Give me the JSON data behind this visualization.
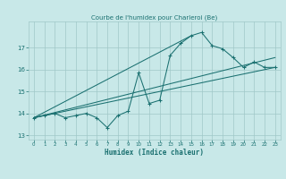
{
  "title": "Courbe de l'humidex pour Charleroi (Be)",
  "xlabel": "Humidex (Indice chaleur)",
  "bg_color": "#c8e8e8",
  "grid_color": "#a0c8c8",
  "line_color": "#1a7070",
  "xlim": [
    -0.5,
    23.5
  ],
  "ylim": [
    12.8,
    18.2
  ],
  "xticks": [
    0,
    1,
    2,
    3,
    4,
    5,
    6,
    7,
    8,
    9,
    10,
    11,
    12,
    13,
    14,
    15,
    16,
    17,
    18,
    19,
    20,
    21,
    22,
    23
  ],
  "yticks": [
    13,
    14,
    15,
    16,
    17
  ],
  "main_x": [
    0,
    1,
    2,
    3,
    4,
    5,
    6,
    7,
    8,
    9,
    10,
    11,
    12,
    13,
    14,
    15,
    16,
    17,
    18,
    19,
    20,
    21,
    22,
    23
  ],
  "main_y": [
    13.8,
    13.9,
    14.0,
    13.8,
    13.9,
    14.0,
    13.8,
    13.35,
    13.9,
    14.1,
    15.85,
    14.45,
    14.6,
    16.65,
    17.2,
    17.55,
    17.7,
    17.1,
    16.95,
    16.55,
    16.1,
    16.35,
    16.1,
    16.1
  ],
  "line1_x": [
    0,
    23
  ],
  "line1_y": [
    13.8,
    16.1
  ],
  "line2_x": [
    0,
    15
  ],
  "line2_y": [
    13.8,
    17.55
  ],
  "line3_x": [
    0,
    23
  ],
  "line3_y": [
    13.8,
    16.55
  ]
}
